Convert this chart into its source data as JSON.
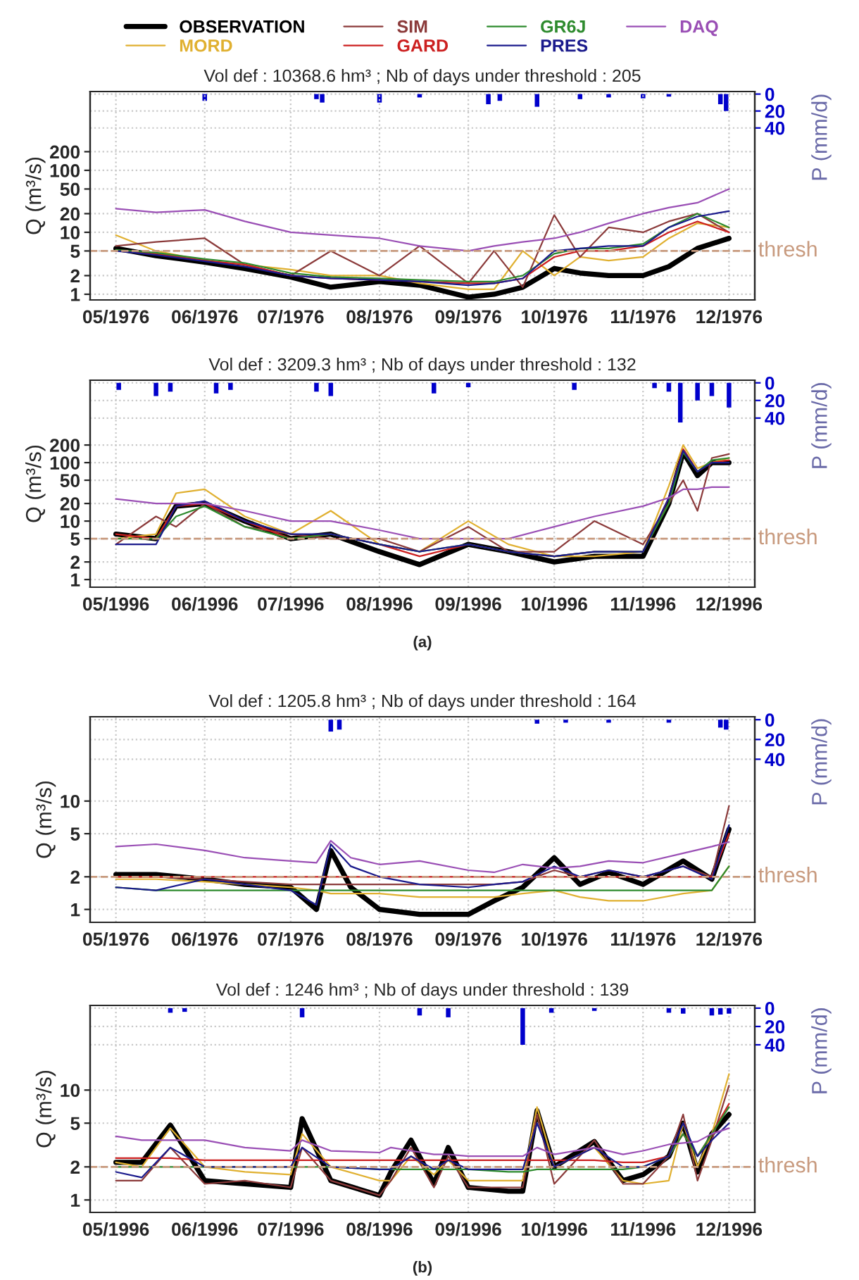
{
  "chart_data": [
    {
      "type": "line",
      "title": "Vol def : 10368.6 hm³ ; Nb of days under threshold : 205",
      "ylabel": "Q (m³/s)",
      "y2label": "P (mm/d)",
      "log": "y",
      "grid": true,
      "legend": "top",
      "xlim": [
        "1976-04-22",
        "1976-12-10"
      ],
      "xticks": [
        {
          "value": "1976-05-01",
          "label": "05/1976"
        },
        {
          "value": "1976-06-01",
          "label": "06/1976"
        },
        {
          "value": "1976-07-01",
          "label": "07/1976"
        },
        {
          "value": "1976-08-01",
          "label": "08/1976"
        },
        {
          "value": "1976-09-01",
          "label": "09/1976"
        },
        {
          "value": "1976-10-01",
          "label": "10/1976"
        },
        {
          "value": "1976-11-01",
          "label": "11/1976"
        },
        {
          "value": "1976-12-01",
          "label": "12/1976"
        }
      ],
      "ylim": [
        0.81,
        1870
      ],
      "yticks": [
        1,
        2,
        5,
        10,
        20,
        50,
        100,
        200
      ],
      "y2lim": [
        243,
        -3
      ],
      "y2ticks": [
        0,
        20,
        40
      ],
      "ref_lines": [
        {
          "axis": "y",
          "value": 5,
          "label": "thresh",
          "color": "#c89a7e",
          "line_style": "dashed"
        }
      ],
      "x": [
        "1976-05-01",
        "1976-05-15",
        "1976-06-01",
        "1976-06-15",
        "1976-07-01",
        "1976-07-15",
        "1976-08-01",
        "1976-08-15",
        "1976-09-01",
        "1976-09-10",
        "1976-09-20",
        "1976-10-01",
        "1976-10-10",
        "1976-10-20",
        "1976-11-01",
        "1976-11-10",
        "1976-11-20",
        "1976-12-01"
      ],
      "series": [
        {
          "name": "OBSERVATION",
          "color": "#000000",
          "values": [
            5.5,
            4.2,
            3.3,
            2.6,
            1.9,
            1.3,
            1.6,
            1.4,
            0.9,
            1.0,
            1.3,
            2.6,
            2.2,
            2.0,
            2.0,
            2.8,
            5.5,
            8
          ]
        },
        {
          "name": "MORD",
          "color": "#e0b030",
          "values": [
            9,
            5,
            3.5,
            3,
            2.5,
            2,
            2,
            1.5,
            1.2,
            1.2,
            5,
            2,
            4,
            3.5,
            4,
            8,
            14,
            12
          ]
        },
        {
          "name": "SIM",
          "color": "#8b3a3a",
          "values": [
            6,
            7,
            8,
            3,
            2,
            5,
            2,
            6,
            1.5,
            5,
            1.3,
            19,
            4,
            12,
            10,
            15,
            20,
            10
          ]
        },
        {
          "name": "GARD",
          "color": "#cc2020",
          "values": [
            5,
            4.5,
            3.5,
            3,
            2,
            1.8,
            1.7,
            1.6,
            1.5,
            1.5,
            1.8,
            4,
            5,
            5,
            6,
            10,
            15,
            10
          ]
        },
        {
          "name": "GR6J",
          "color": "#2e8b2e",
          "values": [
            5.2,
            4.7,
            3.7,
            3.2,
            2.2,
            1.9,
            1.8,
            1.7,
            1.6,
            1.6,
            2,
            4.5,
            5.5,
            5.5,
            6.5,
            12,
            20,
            12
          ]
        },
        {
          "name": "PRES",
          "color": "#1a1a8c",
          "values": [
            5,
            4.3,
            3.4,
            2.8,
            2,
            1.8,
            1.7,
            1.6,
            1.4,
            1.5,
            1.8,
            5,
            5.5,
            6,
            6,
            12,
            18,
            22
          ]
        },
        {
          "name": "DAQ",
          "color": "#9a4fb5",
          "values": [
            24,
            21,
            23,
            15,
            10,
            9,
            8,
            6,
            5,
            6,
            7,
            8,
            10,
            14,
            20,
            25,
            30,
            50
          ]
        },
        {
          "type": "bar",
          "axis": "y2",
          "color": "#0000cc",
          "x": [
            "1976-06-01",
            "1976-07-10",
            "1976-07-12",
            "1976-08-01",
            "1976-08-15",
            "1976-09-08",
            "1976-09-12",
            "1976-09-25",
            "1976-10-10",
            "1976-10-20",
            "1976-11-01",
            "1976-11-10",
            "1976-11-28",
            "1976-11-30"
          ],
          "values": [
            8,
            6,
            10,
            10,
            4,
            12,
            8,
            15,
            6,
            4,
            5,
            3,
            12,
            20
          ]
        }
      ]
    },
    {
      "type": "line",
      "title": "Vol def : 3209.3 hm³ ; Nb of days under threshold : 132",
      "ylabel": "Q (m³/s)",
      "y2label": "P (mm/d)",
      "log": "y",
      "grid": true,
      "annotations": [
        "(a)"
      ],
      "xlim": [
        "1996-04-22",
        "1996-12-10"
      ],
      "xticks": [
        {
          "value": "1996-05-01",
          "label": "05/1996"
        },
        {
          "value": "1996-06-01",
          "label": "06/1996"
        },
        {
          "value": "1996-07-01",
          "label": "07/1996"
        },
        {
          "value": "1996-08-01",
          "label": "08/1996"
        },
        {
          "value": "1996-09-01",
          "label": "09/1996"
        },
        {
          "value": "1996-10-01",
          "label": "10/1996"
        },
        {
          "value": "1996-11-01",
          "label": "11/1996"
        },
        {
          "value": "1996-12-01",
          "label": "12/1996"
        }
      ],
      "ylim": [
        0.74,
        2570
      ],
      "yticks": [
        1,
        2,
        5,
        10,
        20,
        50,
        100,
        200
      ],
      "y2lim": [
        232,
        -3
      ],
      "y2ticks": [
        0,
        20,
        40
      ],
      "ref_lines": [
        {
          "axis": "y",
          "value": 5,
          "label": "thresh",
          "color": "#c89a7e",
          "line_style": "dashed"
        }
      ],
      "x": [
        "1996-05-01",
        "1996-05-15",
        "1996-05-22",
        "1996-06-01",
        "1996-06-15",
        "1996-07-01",
        "1996-07-15",
        "1996-08-01",
        "1996-08-15",
        "1996-09-01",
        "1996-09-15",
        "1996-10-01",
        "1996-10-15",
        "1996-11-01",
        "1996-11-10",
        "1996-11-15",
        "1996-11-20",
        "1996-11-25",
        "1996-12-01"
      ],
      "series": [
        {
          "color": "#000000",
          "values": [
            6,
            5,
            18,
            20,
            10,
            5,
            6,
            3,
            1.8,
            4,
            3,
            2,
            2.5,
            2.5,
            20,
            150,
            60,
            100,
            100
          ]
        },
        {
          "color": "#e0b030",
          "values": [
            5,
            6,
            30,
            35,
            12,
            6,
            15,
            4,
            3,
            10,
            4,
            2.5,
            2.5,
            3,
            40,
            200,
            80,
            100,
            120
          ]
        },
        {
          "color": "#8b3a3a",
          "values": [
            4,
            12,
            8,
            20,
            8,
            6,
            5,
            5,
            3,
            8,
            3,
            3,
            10,
            4,
            20,
            50,
            15,
            120,
            140
          ]
        },
        {
          "color": "#cc2020",
          "values": [
            6,
            5,
            18,
            20,
            10,
            5,
            6,
            4,
            2.5,
            4,
            3,
            2.5,
            3,
            3,
            25,
            170,
            70,
            100,
            110
          ]
        },
        {
          "color": "#2e8b2e",
          "values": [
            5,
            5,
            12,
            18,
            8,
            5,
            6,
            4,
            3,
            4,
            3,
            2.5,
            3,
            3,
            20,
            150,
            70,
            110,
            120
          ]
        },
        {
          "color": "#1a1a8c",
          "values": [
            4,
            4,
            18,
            22,
            10,
            6,
            6,
            4,
            3,
            4,
            3,
            2.5,
            3,
            3,
            25,
            160,
            70,
            100,
            100
          ]
        },
        {
          "color": "#9a4fb5",
          "values": [
            24,
            20,
            20,
            20,
            15,
            10,
            10,
            7,
            5,
            5,
            5,
            8,
            12,
            18,
            25,
            35,
            35,
            38,
            38
          ]
        },
        {
          "type": "bar",
          "axis": "y2",
          "color": "#0000cc",
          "x": [
            "1996-05-02",
            "1996-05-15",
            "1996-05-20",
            "1996-06-05",
            "1996-06-10",
            "1996-07-10",
            "1996-07-15",
            "1996-08-20",
            "1996-09-01",
            "1996-10-08",
            "1996-11-05",
            "1996-11-10",
            "1996-11-14",
            "1996-11-20",
            "1996-11-25",
            "1996-12-01"
          ],
          "values": [
            8,
            15,
            10,
            12,
            8,
            10,
            15,
            12,
            5,
            8,
            6,
            10,
            45,
            20,
            15,
            28
          ]
        }
      ]
    },
    {
      "type": "line",
      "title": "Vol def : 1205.8 hm³ ; Nb of days under threshold : 164",
      "ylabel": "Q (m³/s)",
      "y2label": "P (mm/d)",
      "log": "y",
      "grid": true,
      "xlim": [
        "1976-04-22",
        "1976-12-10"
      ],
      "xticks": [
        {
          "value": "1976-05-01",
          "label": "05/1976"
        },
        {
          "value": "1976-06-01",
          "label": "06/1976"
        },
        {
          "value": "1976-07-01",
          "label": "07/1976"
        },
        {
          "value": "1976-08-01",
          "label": "08/1976"
        },
        {
          "value": "1976-09-01",
          "label": "09/1976"
        },
        {
          "value": "1976-10-01",
          "label": "10/1976"
        },
        {
          "value": "1976-11-01",
          "label": "11/1976"
        },
        {
          "value": "1976-12-01",
          "label": "12/1976"
        }
      ],
      "ylim": [
        0.76,
        60
      ],
      "yticks": [
        1,
        2,
        5,
        10
      ],
      "y2lim": [
        205,
        -3
      ],
      "y2ticks": [
        0,
        20,
        40
      ],
      "ref_lines": [
        {
          "axis": "y",
          "value": 2,
          "label": "thresh",
          "color": "#c89a7e",
          "line_style": "dashed"
        }
      ],
      "x": [
        "1976-05-01",
        "1976-05-15",
        "1976-06-01",
        "1976-06-15",
        "1976-07-01",
        "1976-07-10",
        "1976-07-15",
        "1976-07-22",
        "1976-08-01",
        "1976-08-15",
        "1976-09-01",
        "1976-09-10",
        "1976-09-20",
        "1976-10-01",
        "1976-10-10",
        "1976-10-20",
        "1976-11-01",
        "1976-11-15",
        "1976-11-25",
        "1976-12-01"
      ],
      "series": [
        {
          "color": "#000000",
          "values": [
            2.1,
            2.1,
            1.9,
            1.7,
            1.6,
            1.0,
            3.5,
            1.6,
            1.0,
            0.9,
            0.9,
            1.2,
            1.6,
            3,
            1.7,
            2.2,
            1.7,
            2.8,
            1.9,
            5.5
          ]
        },
        {
          "color": "#e0b030",
          "values": [
            1.9,
            1.9,
            1.8,
            1.7,
            1.6,
            1.5,
            1.4,
            1.4,
            1.4,
            1.3,
            1.3,
            1.3,
            1.4,
            1.5,
            1.3,
            1.2,
            1.2,
            1.4,
            1.5,
            2.5
          ]
        },
        {
          "color": "#8b3a3a",
          "values": [
            2,
            2,
            1.9,
            1.8,
            1.7,
            1.7,
            1.7,
            1.7,
            1.7,
            1.7,
            1.7,
            1.7,
            1.8,
            2.3,
            2,
            2.3,
            2,
            2.5,
            2,
            9
          ]
        },
        {
          "color": "#cc2020",
          "values": [
            2,
            2,
            2,
            2,
            2,
            2,
            2,
            2,
            2,
            2,
            2,
            2,
            2,
            2,
            2,
            2,
            2,
            2,
            2,
            5
          ]
        },
        {
          "color": "#2e8b2e",
          "values": [
            1.6,
            1.5,
            1.5,
            1.5,
            1.5,
            1.5,
            1.5,
            1.5,
            1.5,
            1.5,
            1.5,
            1.5,
            1.5,
            1.5,
            1.5,
            1.5,
            1.5,
            1.5,
            1.5,
            2.5
          ]
        },
        {
          "color": "#1a1a8c",
          "values": [
            1.6,
            1.5,
            1.9,
            1.7,
            1.5,
            1.1,
            4.0,
            2.5,
            2,
            1.7,
            1.6,
            1.7,
            1.8,
            2.5,
            2,
            2.3,
            2,
            2.5,
            1.9,
            6
          ]
        },
        {
          "color": "#9a4fb5",
          "values": [
            3.8,
            4.0,
            3.5,
            3.0,
            2.8,
            2.7,
            4.3,
            3.0,
            2.6,
            2.8,
            2.3,
            2.2,
            2.6,
            2.4,
            2.5,
            2.8,
            2.7,
            3.3,
            3.8,
            4.2
          ]
        },
        {
          "type": "bar",
          "axis": "y2",
          "color": "#0000cc",
          "x": [
            "1976-07-15",
            "1976-07-18",
            "1976-09-25",
            "1976-10-05",
            "1976-10-20",
            "1976-11-10",
            "1976-11-28",
            "1976-11-30"
          ],
          "values": [
            12,
            10,
            4,
            3,
            3,
            3,
            8,
            10
          ]
        }
      ]
    },
    {
      "type": "line",
      "title": "Vol def : 1246 hm³ ; Nb of days under threshold : 139",
      "ylabel": "Q (m³/s)",
      "y2label": "P (mm/d)",
      "log": "y",
      "grid": true,
      "annotations": [
        "(b)"
      ],
      "xlim": [
        "1996-04-22",
        "1996-12-10"
      ],
      "xticks": [
        {
          "value": "1996-05-01",
          "label": "05/1996"
        },
        {
          "value": "1996-06-01",
          "label": "06/1996"
        },
        {
          "value": "1996-07-01",
          "label": "07/1996"
        },
        {
          "value": "1996-08-01",
          "label": "08/1996"
        },
        {
          "value": "1996-09-01",
          "label": "09/1996"
        },
        {
          "value": "1996-10-01",
          "label": "10/1996"
        },
        {
          "value": "1996-11-01",
          "label": "11/1996"
        },
        {
          "value": "1996-12-01",
          "label": "12/1996"
        }
      ],
      "ylim": [
        0.77,
        59
      ],
      "yticks": [
        1,
        2,
        5,
        10
      ],
      "y2lim": [
        223,
        -3
      ],
      "y2ticks": [
        0,
        20,
        40
      ],
      "ref_lines": [
        {
          "axis": "y",
          "value": 2,
          "label": "thresh",
          "color": "#c89a7e",
          "line_style": "dashed"
        }
      ],
      "x": [
        "1996-05-01",
        "1996-05-10",
        "1996-05-20",
        "1996-06-01",
        "1996-06-15",
        "1996-07-01",
        "1996-07-05",
        "1996-07-15",
        "1996-08-01",
        "1996-08-05",
        "1996-08-12",
        "1996-08-20",
        "1996-08-25",
        "1996-09-01",
        "1996-09-15",
        "1996-09-20",
        "1996-09-25",
        "1996-10-01",
        "1996-10-15",
        "1996-10-25",
        "1996-11-01",
        "1996-11-10",
        "1996-11-15",
        "1996-11-20",
        "1996-11-25",
        "1996-12-01"
      ],
      "series": [
        {
          "color": "#000000",
          "values": [
            2.2,
            2.2,
            4.8,
            1.5,
            1.4,
            1.3,
            5.5,
            1.5,
            1.1,
            1.8,
            3.5,
            1.4,
            3,
            1.3,
            1.2,
            1.2,
            6.5,
            2.0,
            3.4,
            1.5,
            1.7,
            2.5,
            5,
            1.8,
            4,
            6
          ]
        },
        {
          "color": "#e0b030",
          "values": [
            2.2,
            2.0,
            4.5,
            2.0,
            1.8,
            1.7,
            4,
            2,
            1.5,
            1.5,
            2.5,
            1.7,
            2.3,
            1.5,
            1.5,
            1.5,
            7,
            2,
            3,
            1.5,
            1.4,
            1.5,
            5,
            2,
            4,
            14
          ]
        },
        {
          "color": "#8b3a3a",
          "values": [
            1.5,
            1.5,
            3,
            1.4,
            1.5,
            1.3,
            3,
            1.5,
            1.1,
            1.5,
            3,
            1.3,
            2.5,
            1.3,
            1.3,
            1.3,
            6,
            1.4,
            3.5,
            1.4,
            1.4,
            2.5,
            6,
            1.5,
            3.5,
            11
          ]
        },
        {
          "color": "#cc2020",
          "values": [
            2.4,
            2.4,
            2.4,
            2.3,
            2.3,
            2.3,
            2.3,
            2.3,
            2.3,
            2.3,
            2.3,
            2.3,
            2.3,
            2.3,
            2.3,
            2.3,
            2.3,
            2.3,
            2.3,
            2.2,
            2.2,
            2.5,
            4,
            2.5,
            4,
            7.5
          ]
        },
        {
          "color": "#2e8b2e",
          "values": [
            2,
            2,
            2,
            2,
            2,
            2,
            2,
            2,
            1.9,
            1.9,
            1.9,
            1.9,
            1.9,
            1.9,
            1.8,
            1.8,
            1.9,
            1.9,
            1.9,
            1.9,
            2,
            2.5,
            4,
            2.5,
            4,
            7
          ]
        },
        {
          "color": "#1a1a8c",
          "values": [
            1.8,
            1.6,
            3,
            2,
            2,
            2,
            3,
            2,
            1.9,
            1.9,
            2.5,
            1.9,
            2.3,
            1.9,
            1.9,
            1.9,
            5,
            2,
            3,
            2,
            2,
            2.5,
            5,
            2.5,
            3.5,
            5
          ]
        },
        {
          "color": "#9a4fb5",
          "values": [
            3.8,
            3.5,
            3.5,
            3.5,
            3,
            2.8,
            3.5,
            2.8,
            2.7,
            3,
            2.8,
            2.6,
            2.6,
            2.5,
            2.5,
            2.5,
            3,
            2.6,
            3,
            2.6,
            2.8,
            3.2,
            3.3,
            3.4,
            4,
            4.5
          ]
        },
        {
          "type": "bar",
          "axis": "y2",
          "color": "#0000cc",
          "x": [
            "1996-05-20",
            "1996-05-25",
            "1996-07-05",
            "1996-08-15",
            "1996-08-25",
            "1996-09-20",
            "1996-09-30",
            "1996-10-15",
            "1996-11-10",
            "1996-11-15",
            "1996-11-25",
            "1996-11-28",
            "1996-12-01"
          ],
          "values": [
            5,
            4,
            10,
            8,
            10,
            40,
            5,
            3,
            5,
            6,
            8,
            7,
            6
          ]
        }
      ]
    }
  ]
}
